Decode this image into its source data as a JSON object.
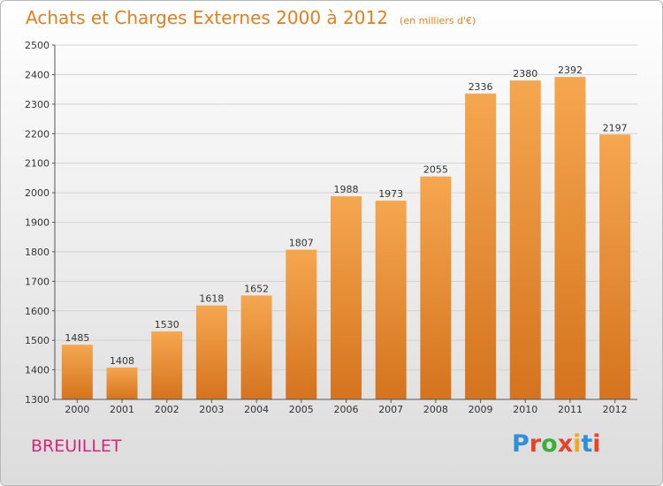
{
  "header": {
    "title": "Achats et Charges Externes 2000 à 2012",
    "subtitle": "(en milliers d'€)"
  },
  "footer": {
    "place": "BREUILLET",
    "logo_text": "Proxiti"
  },
  "colors": {
    "bar_top": "#f5a750",
    "bar_bottom": "#d5731e",
    "title": "#e0801e",
    "place": "#d6267a",
    "logo": [
      "#2f8fd8",
      "#e6442a",
      "#3cae3c",
      "#e6442a",
      "#f2a51e",
      "#2f8fd8",
      "#e6442a"
    ]
  },
  "chart_data": {
    "type": "bar",
    "title": "Achats et Charges Externes 2000 à 2012",
    "subtitle": "(en milliers d'€)",
    "categories": [
      "2000",
      "2001",
      "2002",
      "2003",
      "2004",
      "2005",
      "2006",
      "2007",
      "2008",
      "2009",
      "2010",
      "2011",
      "2012"
    ],
    "values": [
      1485,
      1408,
      1530,
      1618,
      1652,
      1807,
      1988,
      1973,
      2055,
      2336,
      2380,
      2392,
      2197
    ],
    "ylim": [
      1300,
      2500
    ],
    "yticks": [
      1300,
      1400,
      1500,
      1600,
      1700,
      1800,
      1900,
      2000,
      2100,
      2200,
      2300,
      2400,
      2500
    ],
    "grid": true,
    "legend": "none"
  }
}
